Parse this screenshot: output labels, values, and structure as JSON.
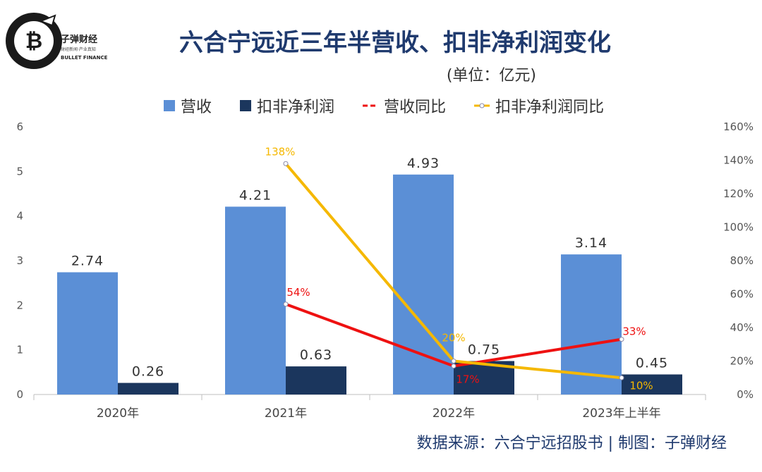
{
  "brand": {
    "cn": "子弹财经",
    "slogan": "财经新闻·产业真知",
    "en": "BULLET FINANCE"
  },
  "chart_data": {
    "type": "bar",
    "title": "六合宁远近三年半营收、扣非净利润变化",
    "unit": "(单位：亿元)",
    "categories": [
      "2020年",
      "2021年",
      "2022年",
      "2023年上半年"
    ],
    "series": [
      {
        "name": "营收",
        "type": "bar",
        "axis": "left",
        "color": "#5b8fd6",
        "values": [
          2.74,
          4.21,
          4.93,
          3.14
        ],
        "labels": [
          "2.74",
          "4.21",
          "4.93",
          "3.14"
        ]
      },
      {
        "name": "扣非净利润",
        "type": "bar",
        "axis": "left",
        "color": "#1b365d",
        "values": [
          0.26,
          0.63,
          0.75,
          0.45
        ],
        "labels": [
          "0.26",
          "0.63",
          "0.75",
          "0.45"
        ]
      },
      {
        "name": "营收同比",
        "type": "line",
        "axis": "right",
        "color": "#ee1111",
        "values": [
          null,
          54,
          17,
          33
        ],
        "labels": [
          null,
          "54%",
          "17%",
          "33%"
        ]
      },
      {
        "name": "扣非净利润同比",
        "type": "line",
        "axis": "right",
        "color": "#f5b800",
        "values": [
          null,
          138,
          20,
          10
        ],
        "labels": [
          null,
          "138%",
          "20%",
          "10%"
        ]
      }
    ],
    "y_left": {
      "min": 0,
      "max": 6,
      "ticks": [
        "0",
        "1",
        "2",
        "3",
        "4",
        "5",
        "6"
      ]
    },
    "y_right": {
      "min": 0,
      "max": 160,
      "ticks": [
        "0%",
        "20%",
        "40%",
        "60%",
        "80%",
        "100%",
        "120%",
        "140%",
        "160%"
      ]
    },
    "legend_position": "top",
    "source": "数据来源：六合宁远招股书 | 制图：子弹财经"
  }
}
